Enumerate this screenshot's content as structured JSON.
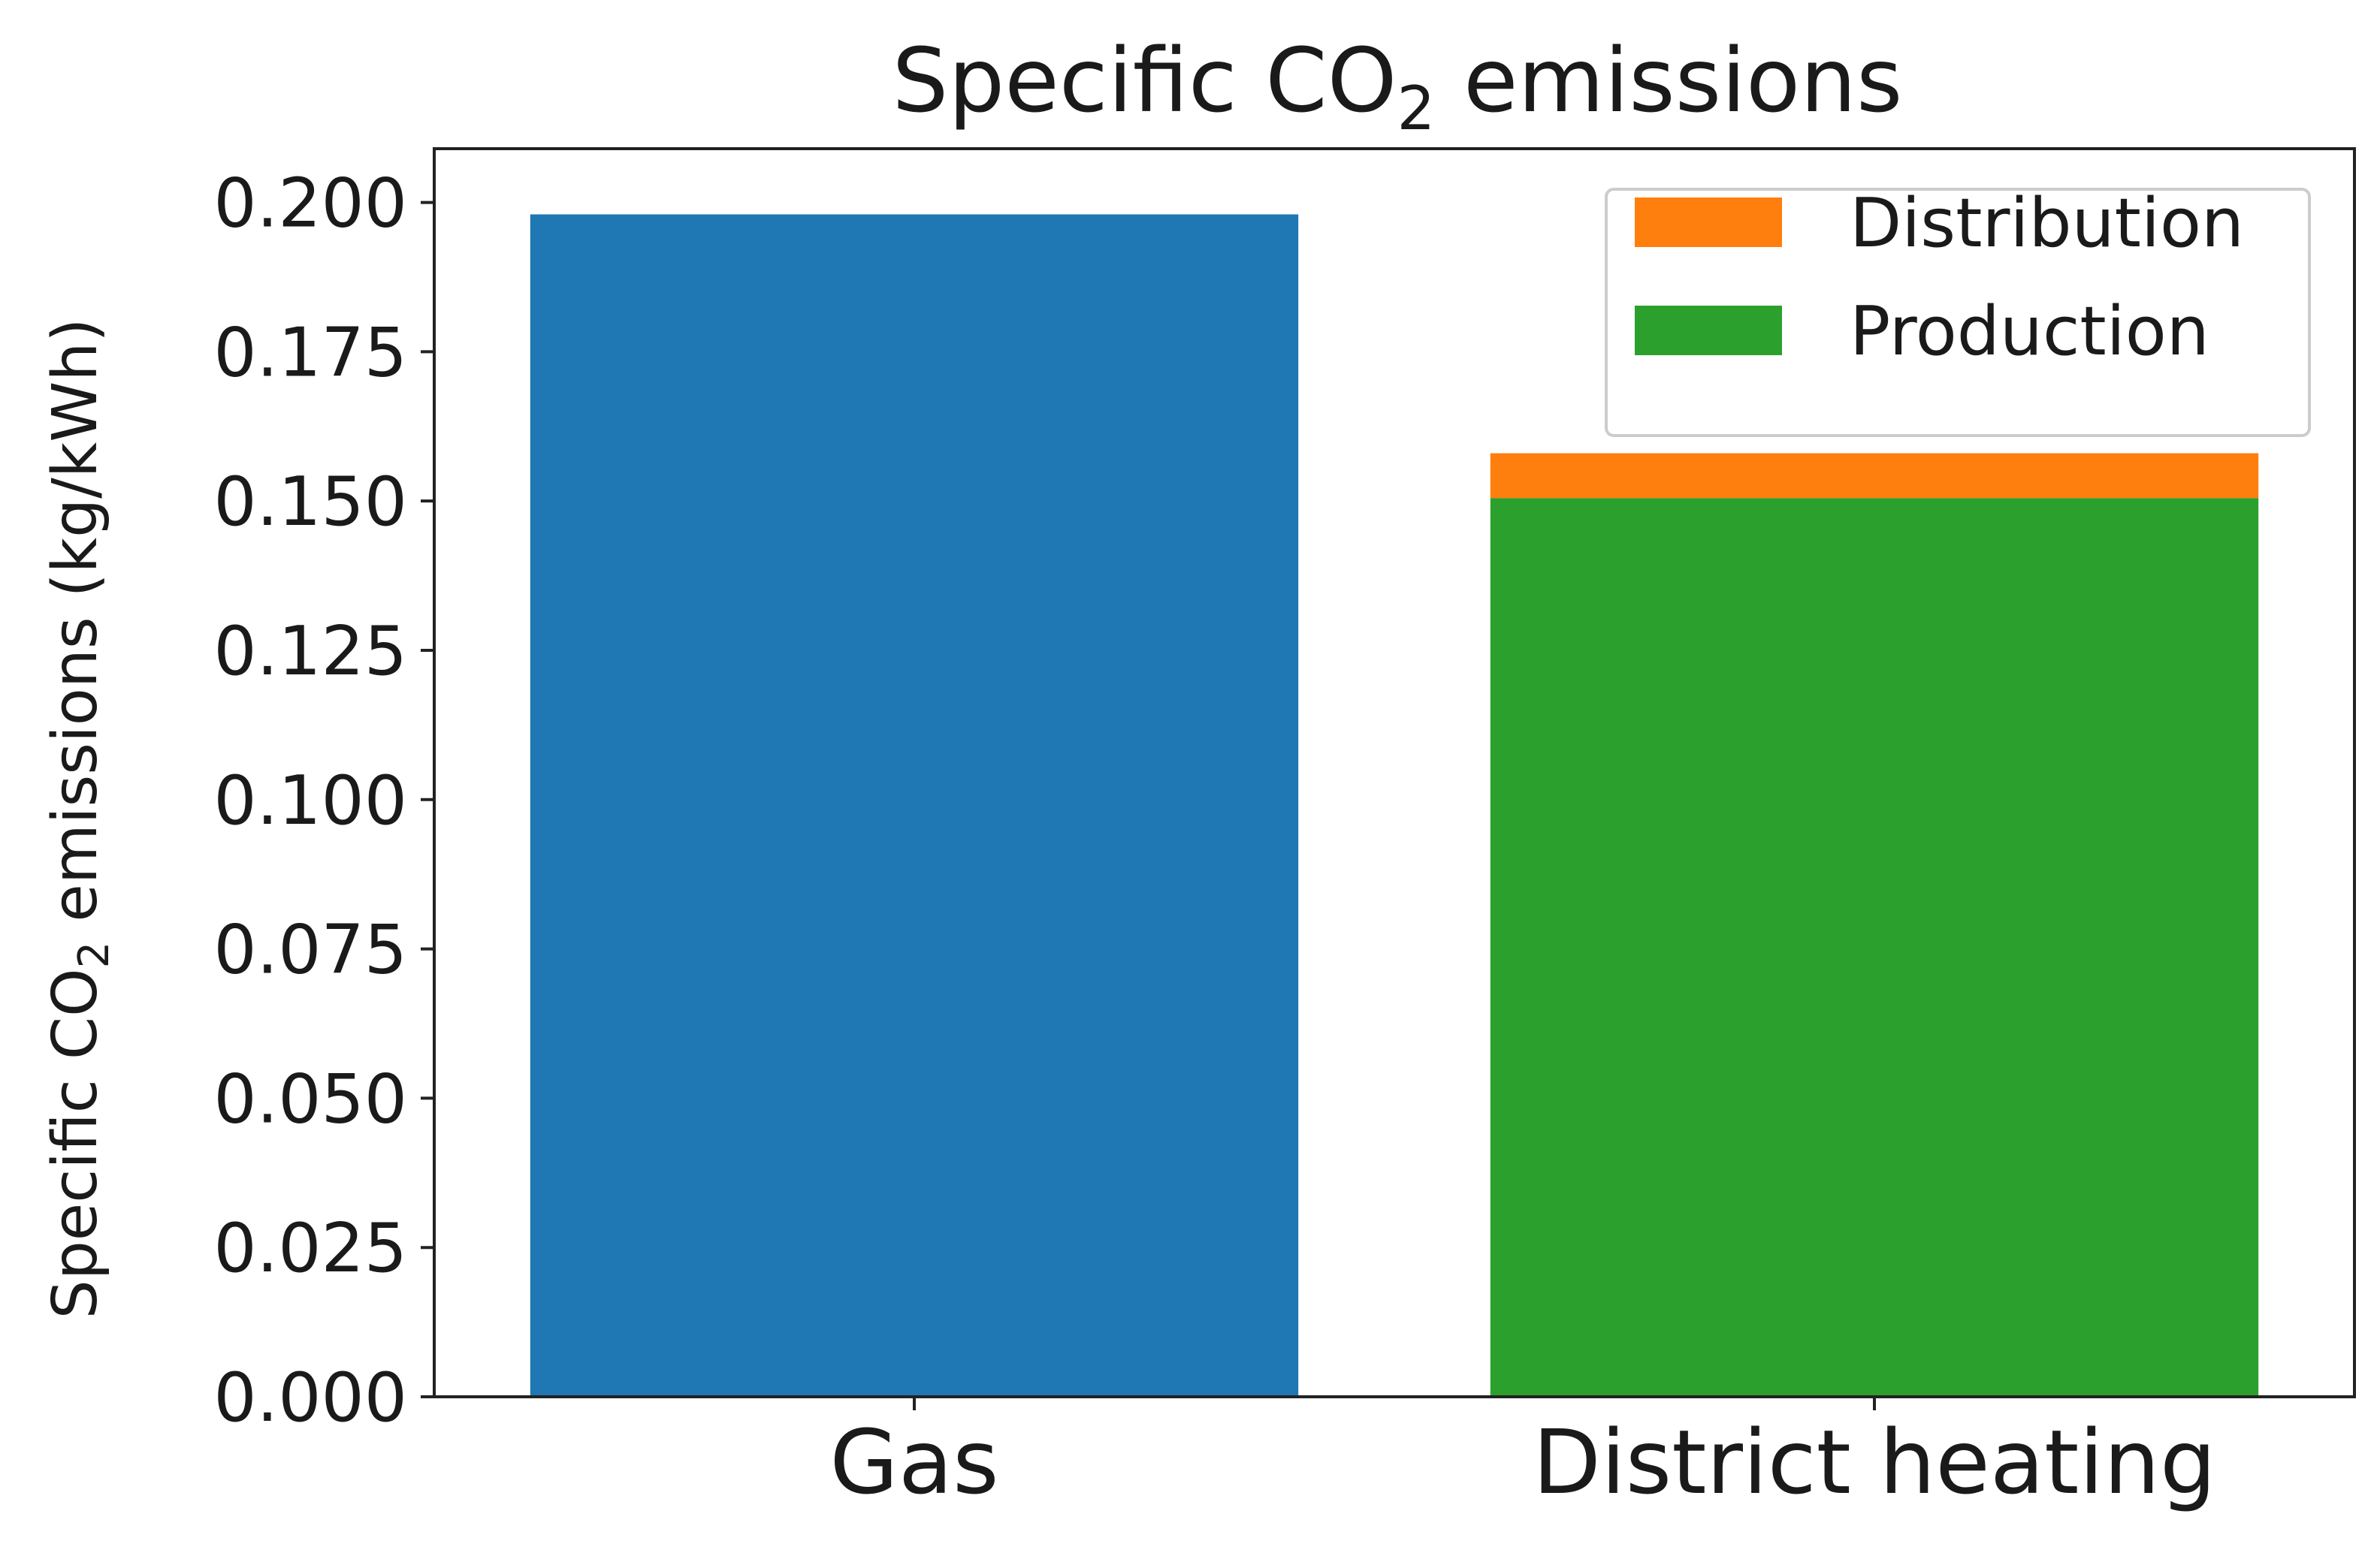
{
  "chart_data": {
    "type": "bar",
    "stacked": true,
    "title": {
      "prefix": "Specific CO",
      "subscript": "2",
      "suffix": " emissions"
    },
    "xlabel": "",
    "ylabel": {
      "prefix": "Specific CO",
      "subscript": "2",
      "suffix": " emissions (kg/kWh)"
    },
    "categories": [
      "Gas",
      "District heating"
    ],
    "ylim": [
      0,
      0.209
    ],
    "yticks": [
      "0.000",
      "0.025",
      "0.050",
      "0.075",
      "0.100",
      "0.125",
      "0.150",
      "0.175",
      "0.200"
    ],
    "ytick_values": [
      0,
      0.025,
      0.05,
      0.075,
      0.1,
      0.125,
      0.15,
      0.175,
      0.2
    ],
    "grid": false,
    "legend_position": "top-right",
    "series": [
      {
        "values": [
          0.198,
          0.0
        ],
        "color": "#1f77b4"
      },
      {
        "name": "Production",
        "values": [
          0.0,
          0.1505
        ],
        "color": "#2ca02c"
      },
      {
        "name": "Distribution",
        "values": [
          0.0,
          0.0075
        ],
        "color": "#ff7f0e"
      }
    ],
    "legend": [
      {
        "name": "Distribution",
        "color": "#ff7f0e"
      },
      {
        "name": "Production",
        "color": "#2ca02c"
      }
    ]
  }
}
